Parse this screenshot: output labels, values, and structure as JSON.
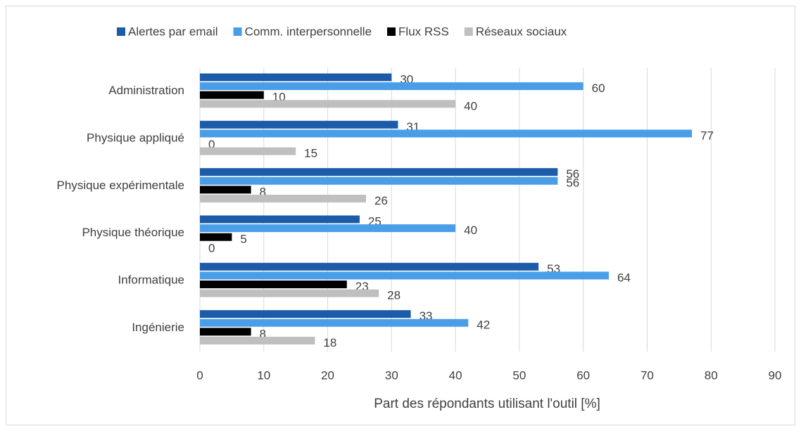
{
  "chart_data": {
    "type": "bar",
    "orientation": "horizontal",
    "categories": [
      "Administration",
      "Physique appliqué",
      "Physique expérimentale",
      "Physique théorique",
      "Informatique",
      "Ingénierie"
    ],
    "series": [
      {
        "name": "Alertes par email",
        "color": "#1c5ba8",
        "values": [
          30,
          31,
          56,
          25,
          53,
          33
        ]
      },
      {
        "name": "Comm. interpersonnelle",
        "color": "#4a9ee8",
        "values": [
          60,
          77,
          56,
          40,
          64,
          42
        ]
      },
      {
        "name": "Flux RSS",
        "color": "#000000",
        "values": [
          10,
          0,
          8,
          5,
          23,
          8
        ]
      },
      {
        "name": "Réseaux sociaux",
        "color": "#bfbfbf",
        "values": [
          40,
          15,
          26,
          0,
          28,
          18
        ]
      }
    ],
    "xlabel": "Part des répondants utilisant l'outil [%]",
    "xlim": [
      0,
      90
    ],
    "xticks": [
      0,
      10,
      20,
      30,
      40,
      50,
      60,
      70,
      80,
      90
    ],
    "grid": true,
    "legend": "top"
  }
}
